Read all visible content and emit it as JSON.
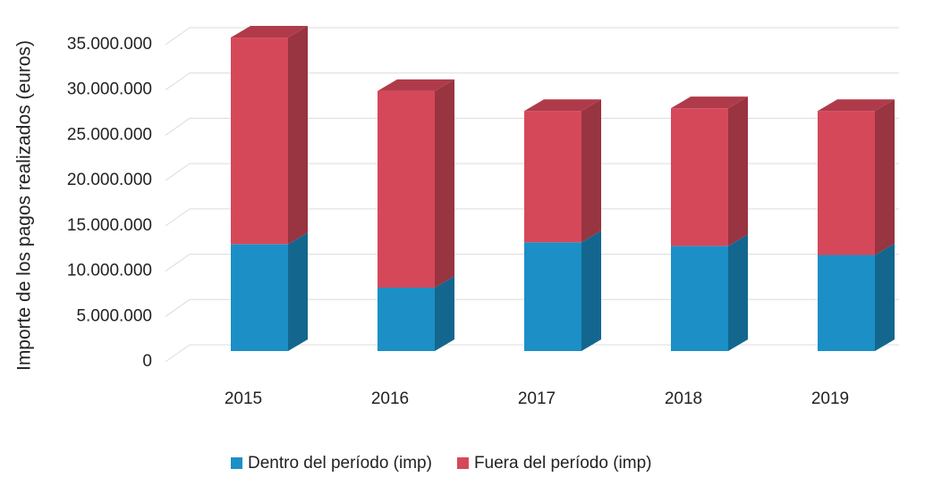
{
  "chart_data": {
    "type": "bar3d_stacked",
    "y_label": "Importe  de los pagos realizados (euros)",
    "categories": [
      "2015",
      "2016",
      "2017",
      "2018",
      "2019"
    ],
    "series": [
      {
        "name": "Dentro del período (imp)",
        "color": "#1b8fc6",
        "values": [
          11800000,
          7000000,
          12000000,
          11600000,
          10600000
        ]
      },
      {
        "name": "Fuera del período (imp)",
        "color": "#d5485a",
        "values": [
          22800000,
          21700000,
          14500000,
          15200000,
          15900000
        ]
      }
    ],
    "ylim": [
      0,
      35000000
    ],
    "yticks": [
      0,
      {
        "value": 5000000,
        "label": "5.000.000"
      },
      {
        "value": 10000000,
        "label": "10.000.000"
      },
      {
        "value": 15000000,
        "label": "15.000.000"
      },
      {
        "value": 20000000,
        "label": "20.000.000"
      },
      {
        "value": 25000000,
        "label": "25.000.000"
      },
      {
        "value": 30000000,
        "label": "30.000.000"
      },
      {
        "value": 35000000,
        "label": "35.000.000"
      }
    ],
    "grid": true
  }
}
